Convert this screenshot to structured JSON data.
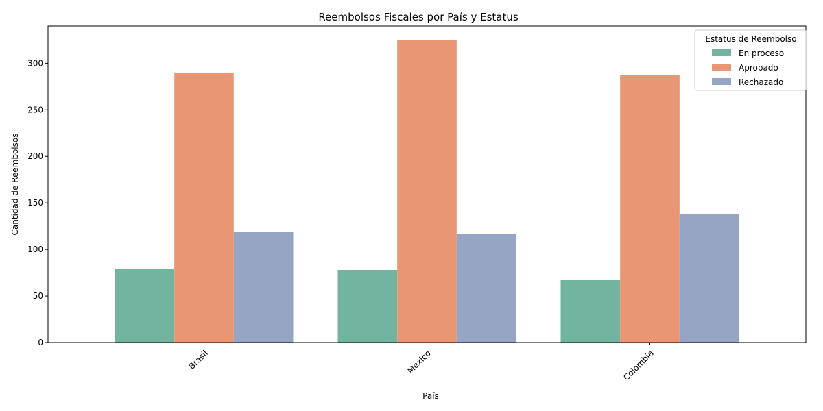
{
  "chart_data": {
    "type": "bar",
    "title": "Reembolsos Fiscales por País y Estatus",
    "xlabel": "País",
    "ylabel": "Cantidad de Reembolsos",
    "categories": [
      "Brasil",
      "México",
      "Colombia"
    ],
    "series": [
      {
        "name": "En proceso",
        "values": [
          79,
          78,
          67
        ],
        "color": "#73b4a0"
      },
      {
        "name": "Aprobado",
        "values": [
          290,
          325,
          287
        ],
        "color": "#e89674"
      },
      {
        "name": "Rechazado",
        "values": [
          119,
          117,
          138
        ],
        "color": "#96a5c3"
      }
    ],
    "ylim": [
      0,
      340
    ],
    "yticks": [
      0,
      50,
      100,
      150,
      200,
      250,
      300
    ],
    "grid": false,
    "legend": {
      "title": "Estatus de Reembolso",
      "placement": "top-right"
    },
    "xtick_rotation": 45
  }
}
